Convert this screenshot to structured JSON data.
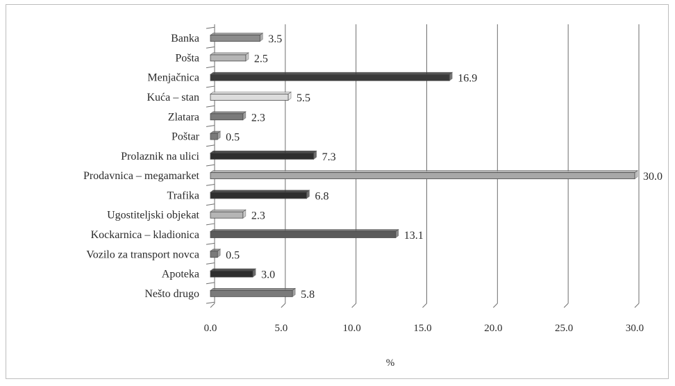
{
  "chart_data": {
    "type": "bar",
    "orientation": "horizontal",
    "title": "",
    "xlabel": "%",
    "ylabel": "",
    "xlim": [
      0,
      30
    ],
    "x_ticks": [
      "0.0",
      "5.0",
      "10.0",
      "15.0",
      "20.0",
      "25.0",
      "30.0"
    ],
    "grid": "vertical",
    "legend": "none",
    "categories": [
      "Banka",
      "Pošta",
      "Menjačnica",
      "Kuća – stan",
      "Zlatara",
      "Poštar",
      "Prolaznik na ulici",
      "Prodavnica – megamarket",
      "Trafika",
      "Ugostiteljski objekat",
      "Kockarnica – kladionica",
      "Vozilo za transport novca",
      "Apoteka",
      "Nešto drugo"
    ],
    "values": [
      3.5,
      2.5,
      16.9,
      5.5,
      2.3,
      0.5,
      7.3,
      30.0,
      6.8,
      2.3,
      13.1,
      0.5,
      3.0,
      5.8
    ],
    "value_labels": [
      "3.5",
      "2.5",
      "16.9",
      "5.5",
      "2.3",
      "0.5",
      "7.3",
      "30.0",
      "6.8",
      "2.3",
      "13.1",
      "0.5",
      "3.0",
      "5.8"
    ],
    "bar_colors": [
      "#8c8c8c",
      "#b5b5b5",
      "#3a3a3a",
      "#dcdcdc",
      "#7a7a7a",
      "#7a7a7a",
      "#2e2e2e",
      "#a8a8a8",
      "#2e2e2e",
      "#b5b5b5",
      "#5a5a5a",
      "#7a7a7a",
      "#2e2e2e",
      "#7a7a7a"
    ]
  }
}
